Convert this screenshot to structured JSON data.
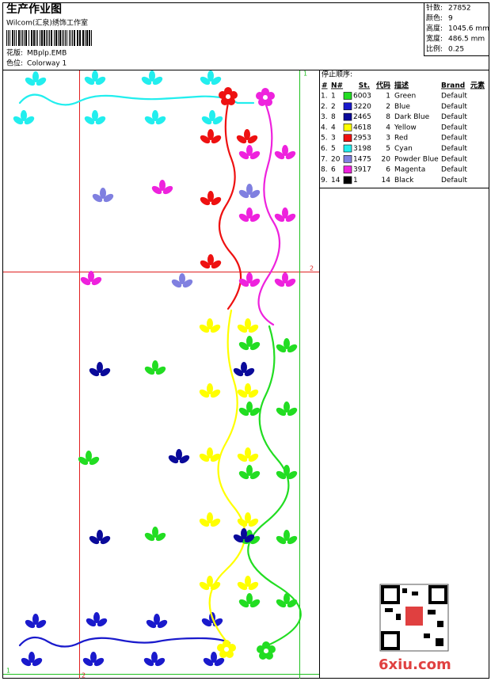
{
  "header": {
    "title": "生产作业图",
    "studio": "Wilcom(汇泉)绣饰工作室",
    "design_label": "花版:",
    "design_name": "MBplp.EMB",
    "colorway_label": "色位:",
    "colorway": "Colorway 1"
  },
  "info": [
    {
      "label": "针数:",
      "value": "27852"
    },
    {
      "label": "颜色:",
      "value": "9"
    },
    {
      "label": "高度:",
      "value": "1045.6 mm"
    },
    {
      "label": "宽度:",
      "value": "486.5 mm"
    },
    {
      "label": "比例:",
      "value": "0.25"
    }
  ],
  "stop_sequence": {
    "title": "停止顺序:",
    "columns": [
      "#",
      "N#",
      "St.",
      "代码",
      "描述",
      "Brand",
      "元素"
    ],
    "rows": [
      {
        "index": "1.",
        "needle": "1",
        "color": "#22dd22",
        "stitches": "6003",
        "code": "1",
        "description": "Green",
        "brand": "Default"
      },
      {
        "index": "2.",
        "needle": "2",
        "color": "#1a1acc",
        "stitches": "3220",
        "code": "2",
        "description": "Blue",
        "brand": "Default"
      },
      {
        "index": "3.",
        "needle": "8",
        "color": "#0a0a9a",
        "stitches": "2465",
        "code": "8",
        "description": "Dark Blue",
        "brand": "Default"
      },
      {
        "index": "4.",
        "needle": "4",
        "color": "#ffff00",
        "stitches": "4618",
        "code": "4",
        "description": "Yellow",
        "brand": "Default"
      },
      {
        "index": "5.",
        "needle": "3",
        "color": "#ee1111",
        "stitches": "2953",
        "code": "3",
        "description": "Red",
        "brand": "Default"
      },
      {
        "index": "6.",
        "needle": "5",
        "color": "#22eeee",
        "stitches": "3198",
        "code": "5",
        "description": "Cyan",
        "brand": "Default"
      },
      {
        "index": "7.",
        "needle": "20",
        "color": "#8080e0",
        "stitches": "1475",
        "code": "20",
        "description": "Powder Blue",
        "brand": "Default"
      },
      {
        "index": "8.",
        "needle": "6",
        "color": "#ee22dd",
        "stitches": "3917",
        "code": "6",
        "description": "Magenta",
        "brand": "Default"
      },
      {
        "index": "9.",
        "needle": "14",
        "color": "#000000",
        "stitches": "1",
        "code": "14",
        "description": "Black",
        "brand": "Default"
      }
    ]
  },
  "design_markers": [
    "1",
    "2",
    "1",
    "2"
  ],
  "watermark": "6xiu.com"
}
